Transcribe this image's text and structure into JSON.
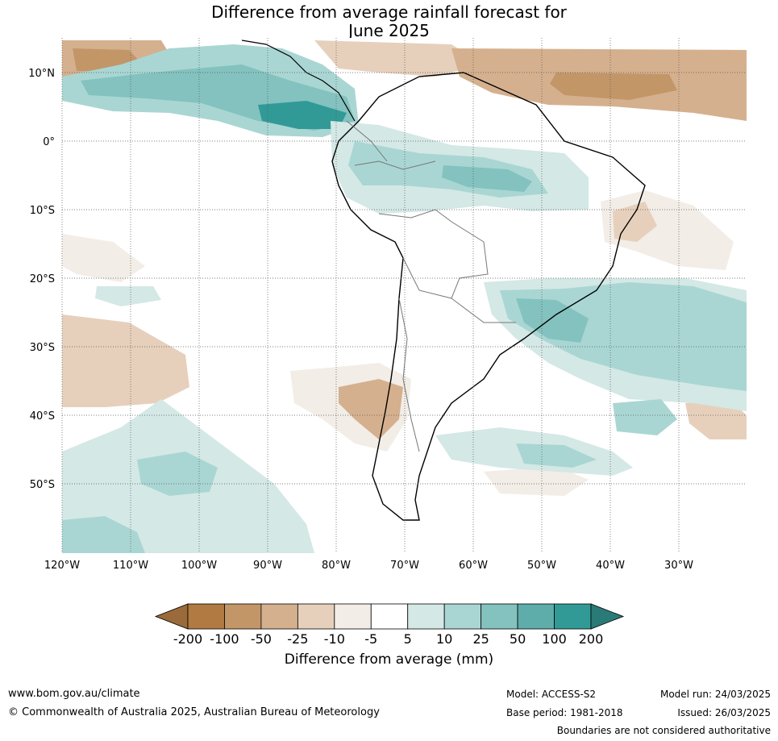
{
  "title_line1": "Difference from average rainfall forecast for",
  "title_line2": "June 2025",
  "map": {
    "lat_labels": [
      "10°N",
      "0°",
      "10°S",
      "20°S",
      "30°S",
      "40°S",
      "50°S"
    ],
    "lon_labels": [
      "120°W",
      "110°W",
      "100°W",
      "90°W",
      "80°W",
      "70°W",
      "60°W",
      "50°W",
      "40°W",
      "30°W"
    ]
  },
  "legend": {
    "title": "Difference from average (mm)",
    "tick_labels": [
      "-200",
      "-100",
      "-50",
      "-25",
      "-10",
      "-5",
      "5",
      "10",
      "25",
      "50",
      "100",
      "200"
    ],
    "colors": [
      "#9b6a3a",
      "#b07a42",
      "#c39668",
      "#d5b08e",
      "#e6d0bc",
      "#f2ede6",
      "#ffffff",
      "#d4e8e6",
      "#a9d6d3",
      "#83c2bf",
      "#5eadaa",
      "#319a96",
      "#2a7a77"
    ]
  },
  "footer": {
    "website": "www.bom.gov.au/climate",
    "copyright": "© Commonwealth of Australia 2025, Australian Bureau of Meteorology",
    "model": "Model: ACCESS-S2",
    "base_period": "Base period: 1981-2018",
    "model_run": "Model run: 24/03/2025",
    "issued": "Issued: 26/03/2025",
    "disclaimer": "Boundaries are not considered authoritative"
  }
}
